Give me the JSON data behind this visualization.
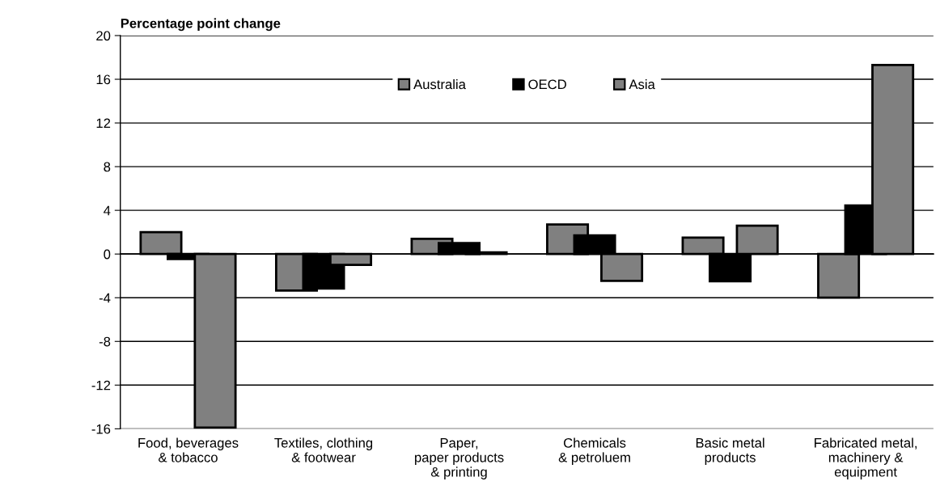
{
  "chart_data": {
    "type": "bar",
    "ylabel": "Percentage point change",
    "categories": [
      "Food, beverages\n& tobacco",
      "Textiles, clothing\n& footwear",
      "Paper,\npaper products\n& printing",
      "Chemicals\n& petroluem",
      "Basic metal\nproducts",
      "Fabricated metal,\nmachinery &\nequipment"
    ],
    "series": [
      {
        "name": "Australia",
        "color": "#808080",
        "values": [
          2.0,
          -3.35,
          1.4,
          2.7,
          1.5,
          -4.0
        ]
      },
      {
        "name": "OECD",
        "color": "#000000",
        "values": [
          -0.45,
          -3.15,
          1.0,
          1.7,
          -2.5,
          4.45
        ]
      },
      {
        "name": "Asia",
        "color": "#808080",
        "values": [
          -15.9,
          -1.0,
          0.15,
          -2.45,
          2.6,
          17.3
        ]
      }
    ],
    "ylim": [
      -16,
      20
    ],
    "yticks": [
      -16,
      -12,
      -8,
      -4,
      0,
      4,
      8,
      12,
      16,
      20
    ],
    "grid": "y",
    "legend": "top"
  }
}
